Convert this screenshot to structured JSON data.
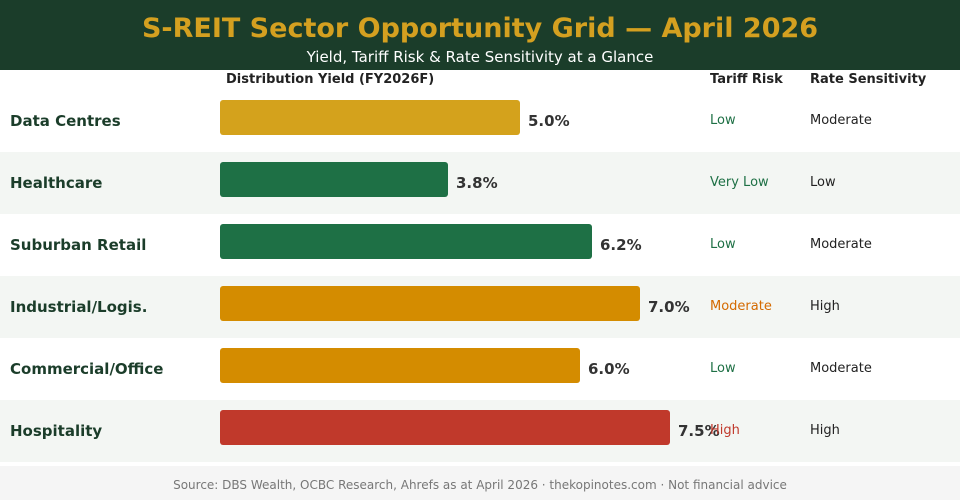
{
  "header": {
    "title": "S-REIT Sector Opportunity Grid — April 2026",
    "subtitle": "Yield, Tariff Risk & Rate Sensitivity at a Glance"
  },
  "columns": {
    "yield": "Distribution Yield (FY2026F)",
    "tariff": "Tariff Risk",
    "rate": "Rate Sensitivity"
  },
  "chart_data": {
    "type": "bar",
    "orientation": "horizontal",
    "xlim": [
      0,
      10
    ],
    "unit": "%",
    "categories": [
      "Data Centres",
      "Healthcare",
      "Suburban Retail",
      "Industrial/Logis.",
      "Commercial/Office",
      "Hospitality"
    ],
    "values": [
      5.0,
      3.8,
      6.2,
      7.0,
      6.0,
      7.5
    ],
    "value_labels": [
      "5.0%",
      "3.8%",
      "6.2%",
      "7.0%",
      "6.0%",
      "7.5%"
    ],
    "bar_colors": [
      "#d4a21c",
      "#1e7045",
      "#1e7045",
      "#d48c00",
      "#d48c00",
      "#c0392b"
    ],
    "tariff_risk": [
      "Low",
      "Very Low",
      "Low",
      "Moderate",
      "Low",
      "High"
    ],
    "tariff_colors": [
      "#1e7045",
      "#1e7045",
      "#1e7045",
      "#d46a00",
      "#1e7045",
      "#c0392b"
    ],
    "rate_sensitivity": [
      "Moderate",
      "Low",
      "Moderate",
      "High",
      "Moderate",
      "High"
    ]
  },
  "footer": {
    "source": "Source: DBS Wealth, OCBC Research, Ahrefs as at April 2026  ·  thekopinotes.com  ·  Not financial advice"
  }
}
